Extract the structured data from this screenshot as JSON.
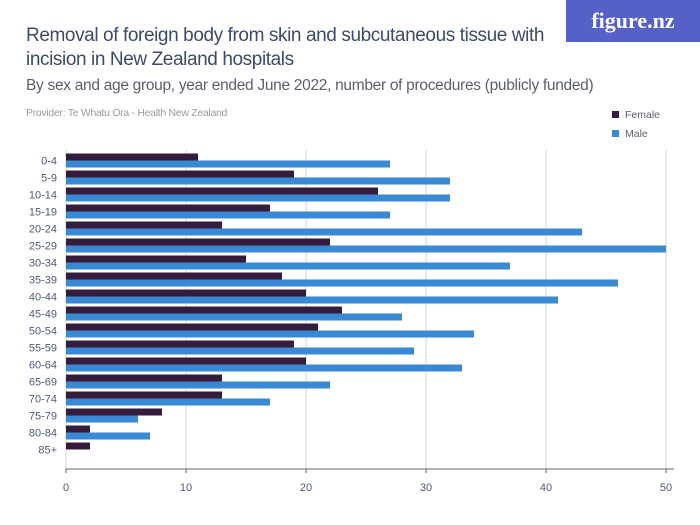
{
  "header": {
    "title": "Removal of foreign body from skin and subcutaneous tissue with incision in New Zealand hospitals",
    "subtitle": "By sex and age group, year ended June 2022, number of procedures (publicly funded)",
    "provider": "Provider: Te Whatu Ora - Health New Zealand",
    "logo": "figure.nz"
  },
  "chart_data": {
    "type": "bar",
    "orientation": "horizontal",
    "title": "Removal of foreign body from skin and subcutaneous tissue with incision in New Zealand hospitals",
    "subtitle": "By sex and age group, year ended June 2022, number of procedures (publicly funded)",
    "categories": [
      "0-4",
      "5-9",
      "10-14",
      "15-19",
      "20-24",
      "25-29",
      "30-34",
      "35-39",
      "40-44",
      "45-49",
      "50-54",
      "55-59",
      "60-64",
      "65-69",
      "70-74",
      "75-79",
      "80-84",
      "85+"
    ],
    "series": [
      {
        "name": "Female",
        "color": "#351c3c",
        "values": [
          11,
          19,
          26,
          17,
          13,
          22,
          15,
          18,
          20,
          23,
          21,
          19,
          20,
          13,
          13,
          8,
          2,
          2
        ]
      },
      {
        "name": "Male",
        "color": "#3a89d4",
        "values": [
          27,
          32,
          32,
          27,
          43,
          50,
          37,
          46,
          41,
          28,
          34,
          29,
          33,
          22,
          17,
          6,
          7,
          0
        ]
      }
    ],
    "xlim": [
      0,
      50
    ],
    "xticks": [
      0,
      10,
      20,
      30,
      40,
      50
    ],
    "grid": true,
    "legend_position": "top-right"
  }
}
